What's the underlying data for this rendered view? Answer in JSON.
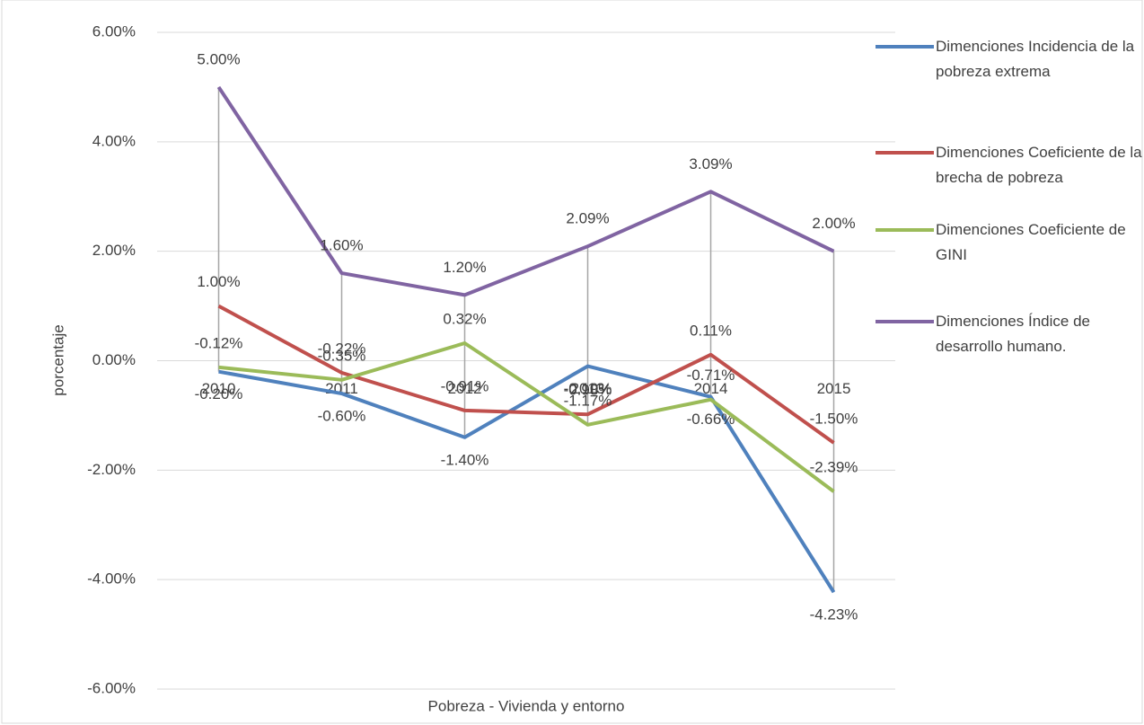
{
  "chart_data": {
    "type": "line",
    "x_label": "Pobreza - Vivienda y entorno",
    "y_label": "porcentaje",
    "categories": [
      "2010",
      "2011",
      "2012",
      "2013",
      "2014",
      "2015"
    ],
    "ylim": [
      -6,
      6
    ],
    "yticks": [
      {
        "value": -6,
        "label": "-6.00%"
      },
      {
        "value": -4,
        "label": "-4.00%"
      },
      {
        "value": -2,
        "label": "-2.00%"
      },
      {
        "value": 0,
        "label": "0.00%"
      },
      {
        "value": 2,
        "label": "2.00%"
      },
      {
        "value": 4,
        "label": "4.00%"
      },
      {
        "value": 6,
        "label": "6.00%"
      }
    ],
    "grid": true,
    "legend": "right",
    "series": [
      {
        "name": "Dimenciones Incidencia de la pobreza extrema",
        "color": "#4f81bd",
        "values": [
          -0.2,
          -0.6,
          -1.4,
          -0.1,
          -0.66,
          -4.23
        ],
        "value_labels": [
          "-0.20%",
          "-0.60%",
          "-1.40%",
          "-0.10%",
          "-0.66%",
          "-4.23%"
        ]
      },
      {
        "name": "Dimenciones Coeficiente de la brecha de pobreza",
        "color": "#c0504d",
        "values": [
          1.0,
          -0.22,
          -0.91,
          -0.98,
          0.11,
          -1.5
        ],
        "value_labels": [
          "1.00%",
          "-0.22%",
          "-0.91%",
          "-0.98%",
          "0.11%",
          "-1.50%"
        ]
      },
      {
        "name": "Dimenciones Coeficiente de GINI",
        "color": "#9bbb59",
        "values": [
          -0.12,
          -0.35,
          0.32,
          -1.17,
          -0.71,
          -2.39
        ],
        "value_labels": [
          "-0.12%",
          "-0.35%",
          "0.32%",
          "-1.17%",
          "-0.71%",
          "-2.39%"
        ]
      },
      {
        "name": "Dimenciones Índice de desarrollo humano.",
        "color": "#8064a2",
        "values": [
          5.0,
          1.6,
          1.2,
          2.09,
          3.09,
          2.0
        ],
        "value_labels": [
          "5.00%",
          "1.60%",
          "1.20%",
          "2.09%",
          "3.09%",
          "2.00%"
        ]
      }
    ]
  }
}
